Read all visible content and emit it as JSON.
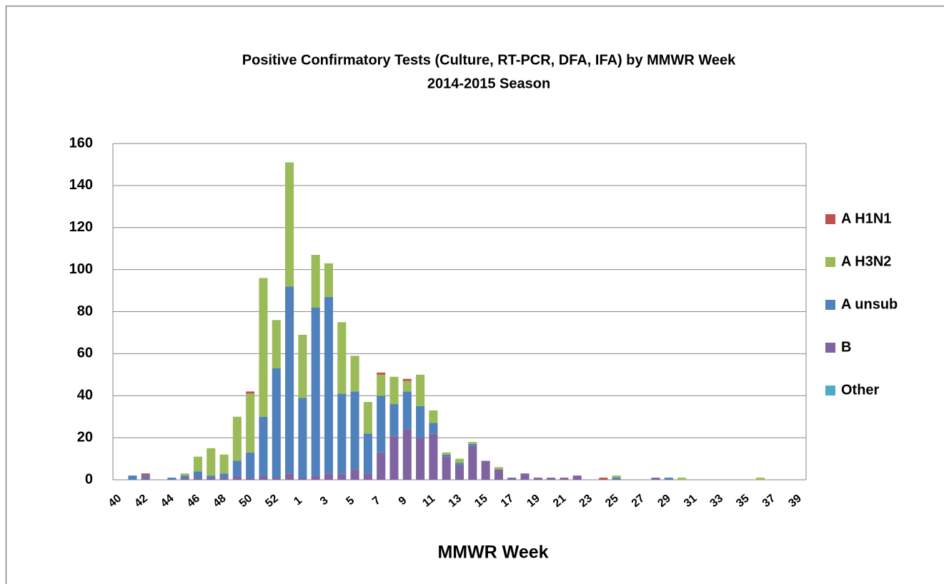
{
  "chart_data": {
    "type": "stacked-bar",
    "title": "Positive Confirmatory Tests (Culture, RT-PCR, DFA, IFA) by MMWR Week",
    "subtitle": "2014-2015 Season",
    "x_label": "MMWR Week",
    "categories": [
      "40",
      null,
      "42",
      null,
      "44",
      null,
      "46",
      null,
      "48",
      null,
      "50",
      null,
      "52",
      null,
      "1",
      null,
      "3",
      null,
      "5",
      null,
      "7",
      null,
      "9",
      null,
      "11",
      null,
      "13",
      null,
      "15",
      null,
      "17",
      null,
      "19",
      null,
      "21",
      null,
      "23",
      null,
      "25",
      null,
      "27",
      null,
      "29",
      null,
      "31",
      null,
      "33",
      null,
      "35",
      null,
      "37",
      null,
      "39"
    ],
    "series": [
      {
        "name": "A H1N1",
        "color": "#c0504d",
        "values": [
          0,
          0,
          1,
          0,
          0,
          0,
          0,
          0,
          0,
          0,
          1,
          0,
          0,
          0,
          0,
          0,
          0,
          0,
          0,
          0,
          1,
          0,
          1,
          0,
          0,
          0,
          0,
          0,
          0,
          0,
          0,
          0,
          0,
          0,
          0,
          0,
          0,
          1,
          0,
          0,
          0,
          0,
          0,
          0,
          0,
          0,
          0,
          0,
          0,
          0,
          0,
          0,
          0
        ]
      },
      {
        "name": "A H3N2",
        "color": "#9bbb59",
        "values": [
          0,
          0,
          0,
          0,
          0,
          1,
          7,
          13,
          9,
          21,
          28,
          66,
          23,
          59,
          30,
          25,
          16,
          34,
          17,
          15,
          10,
          13,
          5,
          15,
          6,
          1,
          2,
          1,
          0,
          1,
          0,
          0,
          0,
          0,
          0,
          0,
          0,
          0,
          1,
          0,
          0,
          0,
          0,
          1,
          0,
          0,
          0,
          0,
          0,
          1,
          0,
          0,
          0
        ]
      },
      {
        "name": "A unsub",
        "color": "#4f81bd",
        "values": [
          0,
          2,
          1,
          0,
          1,
          1,
          3,
          1,
          2,
          7,
          12,
          28,
          52,
          89,
          38,
          80,
          84,
          38,
          37,
          19,
          27,
          15,
          18,
          15,
          5,
          1,
          1,
          1,
          0,
          0,
          0,
          0,
          0,
          0,
          0,
          0,
          0,
          0,
          1,
          0,
          0,
          0,
          1,
          0,
          0,
          0,
          0,
          0,
          0,
          0,
          0,
          0,
          0
        ]
      },
      {
        "name": "B",
        "color": "#8064a2",
        "values": [
          0,
          0,
          1,
          0,
          0,
          1,
          1,
          1,
          1,
          2,
          1,
          2,
          1,
          3,
          1,
          2,
          3,
          3,
          5,
          3,
          13,
          21,
          24,
          20,
          22,
          11,
          7,
          16,
          9,
          5,
          1,
          3,
          1,
          1,
          1,
          2,
          0,
          0,
          0,
          0,
          0,
          1,
          0,
          0,
          0,
          0,
          0,
          0,
          0,
          0,
          0,
          0,
          0
        ]
      },
      {
        "name": "Other",
        "color": "#4bacc6",
        "values": [
          0,
          0,
          0,
          0,
          0,
          0,
          0,
          0,
          0,
          0,
          0,
          0,
          0,
          0,
          0,
          0,
          0,
          0,
          0,
          0,
          0,
          0,
          0,
          0,
          0,
          0,
          0,
          0,
          0,
          0,
          0,
          0,
          0,
          0,
          0,
          0,
          0,
          0,
          0,
          0,
          0,
          0,
          0,
          0,
          0,
          0,
          0,
          0,
          0,
          0,
          0,
          0,
          0
        ]
      }
    ],
    "ylim": [
      0,
      160
    ],
    "yticks": [
      0,
      20,
      40,
      60,
      80,
      100,
      120,
      140,
      160
    ],
    "grid": true,
    "legend": "right"
  }
}
